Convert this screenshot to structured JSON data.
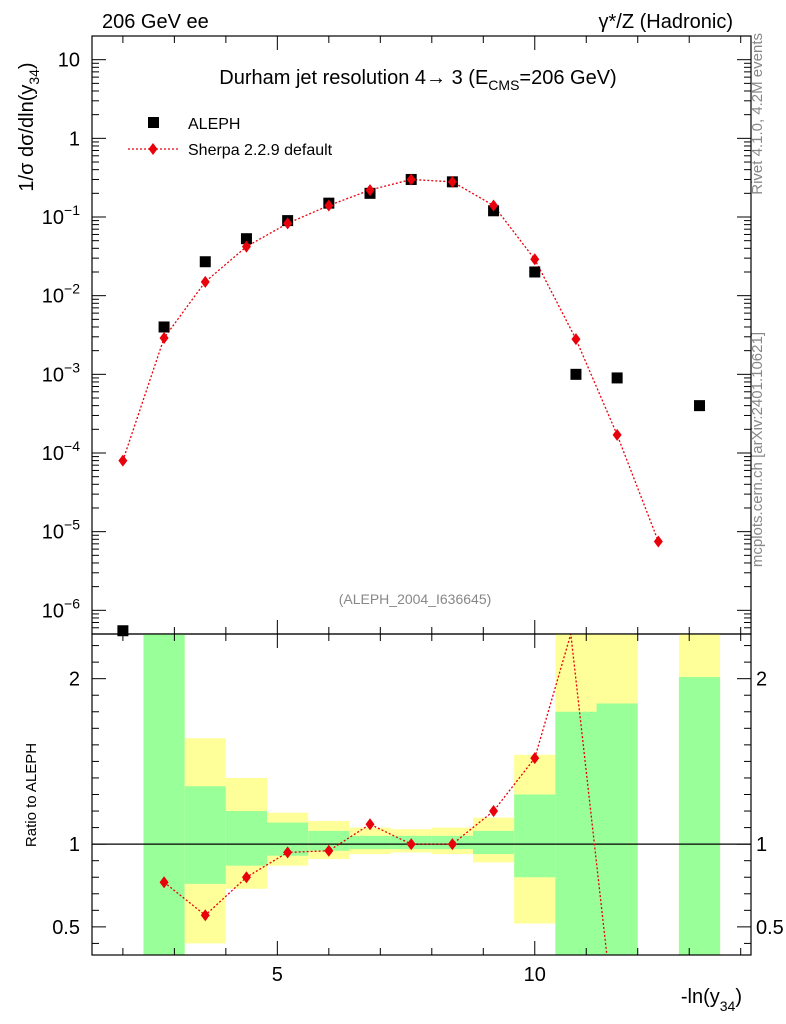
{
  "header": {
    "left": "206 GeV ee",
    "right": "γ*/Z (Hadronic)"
  },
  "side_labels": {
    "rivet": "Rivet 4.1.0,  4.2M events",
    "mcplots": "mcplots.cern.ch [arXiv:2401.10621]"
  },
  "chart_data": [
    {
      "type": "scatter",
      "panel": "main",
      "title": "Durham jet resolution 4→ 3 (E_CMS=206 GeV)",
      "title_parts": {
        "main": "Durham jet resolution 4→ 3 (E",
        "sub": "CMS",
        "tail": "=206 GeV)"
      },
      "ylabel": "1/σ  dσ/dln(y34)",
      "ylabel_parts": {
        "main": "1/σ  dσ/dln(y",
        "sub": "34",
        "tail": ")"
      },
      "yscale": "log",
      "ylim": [
        5e-07,
        20
      ],
      "xlim": [
        1.4,
        14.2
      ],
      "yticks": [
        {
          "value": 1e-06,
          "label": "10",
          "exp": "−6"
        },
        {
          "value": 1e-05,
          "label": "10",
          "exp": "−5"
        },
        {
          "value": 0.0001,
          "label": "10",
          "exp": "−4"
        },
        {
          "value": 0.001,
          "label": "10",
          "exp": "−3"
        },
        {
          "value": 0.01,
          "label": "10",
          "exp": "−2"
        },
        {
          "value": 0.1,
          "label": "10",
          "exp": "−1"
        },
        {
          "value": 1,
          "label": "1",
          "exp": ""
        },
        {
          "value": 10,
          "label": "10",
          "exp": ""
        }
      ],
      "legend": {
        "position": "top-left",
        "entries": [
          "ALEPH",
          "Sherpa 2.2.9 default"
        ]
      },
      "watermark": "(ALEPH_2004_I636645)",
      "series": [
        {
          "name": "ALEPH",
          "marker": "square",
          "color": "#000000",
          "x": [
            2.0,
            2.8,
            3.6,
            4.4,
            5.2,
            6.0,
            6.8,
            7.6,
            8.4,
            9.2,
            10.0,
            10.8,
            11.6,
            13.2
          ],
          "y": [
            5.5e-07,
            0.004,
            0.027,
            0.053,
            0.09,
            0.15,
            0.2,
            0.3,
            0.28,
            0.12,
            0.02,
            0.001,
            0.0009,
            0.0004
          ]
        },
        {
          "name": "Sherpa 2.2.9 default",
          "marker": "diamond",
          "color": "#e8000b",
          "line": "dotted",
          "x": [
            2.0,
            2.8,
            3.6,
            4.4,
            5.2,
            6.0,
            6.8,
            7.6,
            8.4,
            9.2,
            10.0,
            10.8,
            11.6,
            12.4
          ],
          "y": [
            8e-05,
            0.0029,
            0.015,
            0.042,
            0.083,
            0.14,
            0.22,
            0.3,
            0.28,
            0.14,
            0.029,
            0.0028,
            0.00017,
            7.5e-06
          ]
        }
      ]
    },
    {
      "type": "scatter",
      "panel": "ratio",
      "ylabel": "Ratio to ALEPH",
      "xlabel": "-ln(y34)",
      "xlabel_parts": {
        "main": "-ln(y",
        "sub": "34",
        "tail": ")"
      },
      "ylim": [
        0.33,
        2.27
      ],
      "xlim": [
        1.4,
        14.2
      ],
      "xticks": [
        5,
        10
      ],
      "yticks": [
        0.5,
        1,
        2
      ],
      "reference_line": 1,
      "bands": [
        {
          "x0": 2.4,
          "x1": 3.2,
          "inner": [
            0.3,
            2.4
          ],
          "outer": [
            0.3,
            2.4
          ]
        },
        {
          "x0": 3.2,
          "x1": 4.0,
          "inner": [
            0.76,
            1.35
          ],
          "outer": [
            0.4,
            1.64
          ]
        },
        {
          "x0": 4.0,
          "x1": 4.8,
          "inner": [
            0.87,
            1.2
          ],
          "outer": [
            0.73,
            1.4
          ]
        },
        {
          "x0": 4.8,
          "x1": 5.6,
          "inner": [
            0.93,
            1.13
          ],
          "outer": [
            0.87,
            1.19
          ]
        },
        {
          "x0": 5.6,
          "x1": 6.4,
          "inner": [
            0.96,
            1.08
          ],
          "outer": [
            0.91,
            1.14
          ]
        },
        {
          "x0": 6.4,
          "x1": 7.2,
          "inner": [
            0.97,
            1.05
          ],
          "outer": [
            0.94,
            1.1
          ]
        },
        {
          "x0": 7.2,
          "x1": 8.0,
          "inner": [
            0.97,
            1.05
          ],
          "outer": [
            0.95,
            1.09
          ]
        },
        {
          "x0": 8.0,
          "x1": 8.8,
          "inner": [
            0.97,
            1.05
          ],
          "outer": [
            0.94,
            1.1
          ]
        },
        {
          "x0": 8.8,
          "x1": 9.6,
          "inner": [
            0.94,
            1.08
          ],
          "outer": [
            0.89,
            1.16
          ]
        },
        {
          "x0": 9.6,
          "x1": 10.4,
          "inner": [
            0.8,
            1.3
          ],
          "outer": [
            0.52,
            1.54
          ]
        },
        {
          "x0": 10.4,
          "x1": 11.2,
          "inner": [
            0.3,
            1.8
          ],
          "outer": [
            0.3,
            2.4
          ]
        },
        {
          "x0": 11.2,
          "x1": 12.0,
          "inner": [
            0.3,
            1.85
          ],
          "outer": [
            0.3,
            2.4
          ]
        },
        {
          "x0": 12.8,
          "x1": 13.6,
          "inner": [
            0.3,
            2.01
          ],
          "outer": [
            0.3,
            2.4
          ]
        }
      ],
      "series": [
        {
          "name": "Sherpa 2.2.9 default / ALEPH",
          "marker": "diamond",
          "color": "#e8000b",
          "line": "dotted",
          "x": [
            2.8,
            3.6,
            4.4,
            5.2,
            6.0,
            6.8,
            7.6,
            8.4,
            9.2,
            10.0
          ],
          "y": [
            0.77,
            0.57,
            0.8,
            0.95,
            0.96,
            1.12,
            1.0,
            1.0,
            1.2,
            1.52
          ],
          "offscale_line": [
            [
              10.0,
              1.52
            ],
            [
              10.7,
              2.5
            ],
            [
              11.4,
              0.2
            ]
          ]
        }
      ]
    }
  ]
}
